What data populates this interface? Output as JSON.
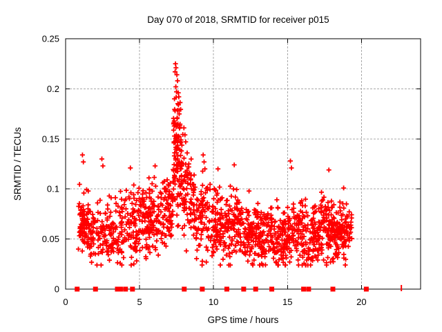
{
  "title": "Day 070 of 2018, SRMTID for receiver p015",
  "axes": {
    "x": {
      "label": "GPS time / hours",
      "range": [
        0,
        24
      ],
      "tick_values": [
        0,
        5,
        10,
        15,
        20
      ],
      "tick_labels": [
        "0",
        "5",
        "10",
        "15",
        "20"
      ]
    },
    "y": {
      "label": "SRMTID / TECUs",
      "range": [
        0,
        0.25
      ],
      "tick_values": [
        0,
        0.05,
        0.1,
        0.15,
        0.2,
        0.25
      ],
      "tick_labels": [
        "0",
        "0.05",
        "0.1",
        "0.15",
        "0.2",
        "0.25"
      ]
    }
  },
  "colors": {
    "marker": "#ff0000",
    "grid": "#a8a8a8",
    "frame": "#000000",
    "text": "#000000",
    "background": "#ffffff"
  },
  "chart_data": {
    "type": "scatter",
    "title": "Day 070 of 2018, SRMTID for receiver p015",
    "xlabel": "GPS time / hours",
    "ylabel": "SRMTID / TECUs",
    "xlim": [
      0,
      24
    ],
    "ylim": [
      0,
      0.25
    ],
    "grid": true,
    "legend": false,
    "marker": "plus",
    "marker_color": "#ff0000",
    "seed": 20180070,
    "x_data_extent": [
      0.85,
      19.35
    ],
    "notable_points": [
      [
        7.43,
        0.225
      ],
      [
        7.46,
        0.221
      ],
      [
        7.4,
        0.217
      ],
      [
        7.52,
        0.214
      ],
      [
        7.57,
        0.208
      ],
      [
        7.45,
        0.202
      ],
      [
        7.5,
        0.197
      ],
      [
        7.62,
        0.196
      ],
      [
        7.36,
        0.19
      ],
      [
        7.63,
        0.184
      ],
      [
        7.4,
        0.178
      ],
      [
        7.55,
        0.171
      ],
      [
        7.3,
        0.165
      ],
      [
        7.47,
        0.162
      ],
      [
        7.68,
        0.152
      ],
      [
        7.35,
        0.147
      ],
      [
        8.0,
        0.161
      ],
      [
        8.07,
        0.154
      ],
      [
        8.12,
        0.147
      ],
      [
        8.22,
        0.136
      ],
      [
        8.33,
        0.125
      ],
      [
        9.3,
        0.134
      ],
      [
        9.36,
        0.127
      ],
      [
        9.42,
        0.12
      ],
      [
        1.14,
        0.134
      ],
      [
        1.2,
        0.127
      ],
      [
        2.45,
        0.13
      ],
      [
        2.52,
        0.123
      ],
      [
        4.38,
        0.121
      ],
      [
        6.05,
        0.123
      ],
      [
        10.3,
        0.12
      ],
      [
        11.4,
        0.124
      ],
      [
        15.2,
        0.128
      ],
      [
        15.27,
        0.121
      ],
      [
        17.8,
        0.119
      ],
      [
        18.8,
        0.101
      ]
    ],
    "density_bands": [
      {
        "x0": 0.85,
        "x1": 1.6,
        "n": 60,
        "y_mean": 0.066,
        "y_spread": 0.1
      },
      {
        "x0": 0.95,
        "x1": 1.35,
        "n": 28,
        "y_mean": 0.068,
        "y_spread": 0.04
      },
      {
        "x0": 1.6,
        "x1": 2.7,
        "n": 75,
        "y_mean": 0.057,
        "y_spread": 0.1
      },
      {
        "x0": 2.7,
        "x1": 3.6,
        "n": 65,
        "y_mean": 0.057,
        "y_spread": 0.09
      },
      {
        "x0": 3.6,
        "x1": 4.7,
        "n": 85,
        "y_mean": 0.06,
        "y_spread": 0.11
      },
      {
        "x0": 4.7,
        "x1": 5.6,
        "n": 80,
        "y_mean": 0.063,
        "y_spread": 0.1
      },
      {
        "x0": 5.6,
        "x1": 6.6,
        "n": 90,
        "y_mean": 0.071,
        "y_spread": 0.11
      },
      {
        "x0": 6.6,
        "x1": 7.25,
        "n": 65,
        "y_mean": 0.08,
        "y_spread": 0.11
      },
      {
        "x0": 7.25,
        "x1": 7.95,
        "n": 75,
        "y_mean": 0.115,
        "y_spread": 0.13
      },
      {
        "x0": 7.3,
        "x1": 7.8,
        "n": 40,
        "y_mean": 0.155,
        "y_spread": 0.09
      },
      {
        "x0": 7.95,
        "x1": 8.7,
        "n": 70,
        "y_mean": 0.092,
        "y_spread": 0.12
      },
      {
        "x0": 8.7,
        "x1": 10.0,
        "n": 95,
        "y_mean": 0.07,
        "y_spread": 0.11
      },
      {
        "x0": 10.0,
        "x1": 11.0,
        "n": 90,
        "y_mean": 0.065,
        "y_spread": 0.1
      },
      {
        "x0": 11.0,
        "x1": 12.0,
        "n": 90,
        "y_mean": 0.06,
        "y_spread": 0.1
      },
      {
        "x0": 12.0,
        "x1": 13.0,
        "n": 90,
        "y_mean": 0.055,
        "y_spread": 0.09
      },
      {
        "x0": 13.0,
        "x1": 14.0,
        "n": 90,
        "y_mean": 0.055,
        "y_spread": 0.09
      },
      {
        "x0": 14.0,
        "x1": 15.0,
        "n": 95,
        "y_mean": 0.05,
        "y_spread": 0.09
      },
      {
        "x0": 15.0,
        "x1": 16.0,
        "n": 85,
        "y_mean": 0.058,
        "y_spread": 0.1
      },
      {
        "x0": 16.0,
        "x1": 17.0,
        "n": 85,
        "y_mean": 0.055,
        "y_spread": 0.09
      },
      {
        "x0": 17.0,
        "x1": 18.0,
        "n": 95,
        "y_mean": 0.06,
        "y_spread": 0.1
      },
      {
        "x0": 17.9,
        "x1": 18.6,
        "n": 30,
        "y_mean": 0.06,
        "y_spread": 0.05
      },
      {
        "x0": 18.0,
        "x1": 19.0,
        "n": 90,
        "y_mean": 0.055,
        "y_spread": 0.09
      },
      {
        "x0": 19.0,
        "x1": 19.35,
        "n": 25,
        "y_mean": 0.058,
        "y_spread": 0.05
      }
    ],
    "zero_value_points_x": [
      0.78,
      2.02,
      3.5,
      3.71,
      4.05,
      4.52,
      8.02,
      9.24,
      10.9,
      12.04,
      12.85,
      13.94,
      16.09,
      16.43,
      18.07,
      20.33
    ],
    "clipped_point_x": 22.7
  }
}
